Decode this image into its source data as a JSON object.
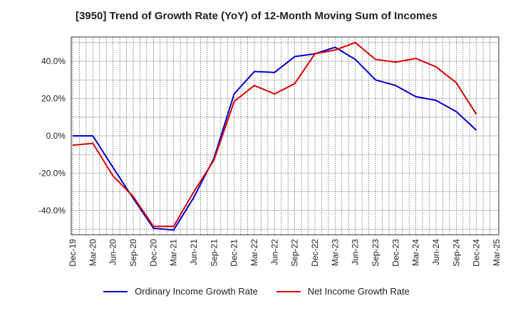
{
  "chart_data": {
    "type": "line",
    "title": "[3950]  Trend of Growth Rate (YoY) of 12-Month Moving Sum of Incomes",
    "x": [
      "Dec-19",
      "Mar-20",
      "Jun-20",
      "Sep-20",
      "Dec-20",
      "Mar-21",
      "Jun-21",
      "Sep-21",
      "Dec-21",
      "Mar-22",
      "Jun-22",
      "Sep-22",
      "Dec-22",
      "Mar-23",
      "Jun-23",
      "Sep-23",
      "Dec-23",
      "Mar-24",
      "Jun-24",
      "Sep-24",
      "Dec-24",
      "Mar-25"
    ],
    "y_ticks": [
      "-40.0%",
      "-20.0%",
      "0.0%",
      "20.0%",
      "40.0%"
    ],
    "y_tick_values": [
      -40,
      -20,
      0,
      20,
      40
    ],
    "ylim": [
      -53,
      53
    ],
    "grid": true,
    "legend_position": "bottom",
    "series": [
      {
        "name": "Ordinary Income Growth Rate",
        "color": "#0000cc",
        "values": [
          0.0,
          0.0,
          -17.0,
          -33.5,
          -49.5,
          -50.5,
          -33.0,
          -12.0,
          22.5,
          34.5,
          34.0,
          42.5,
          44.0,
          47.5,
          41.0,
          30.0,
          27.0,
          21.0,
          19.0,
          13.0,
          3.0,
          null
        ]
      },
      {
        "name": "Net Income Growth Rate",
        "color": "#dd0000",
        "values": [
          -5.0,
          -4.0,
          -21.5,
          -32.5,
          -48.5,
          -48.5,
          -30.0,
          -13.0,
          18.5,
          27.0,
          22.5,
          28.0,
          44.0,
          46.0,
          50.0,
          41.0,
          39.5,
          41.5,
          37.0,
          28.5,
          11.5,
          null
        ]
      }
    ]
  }
}
